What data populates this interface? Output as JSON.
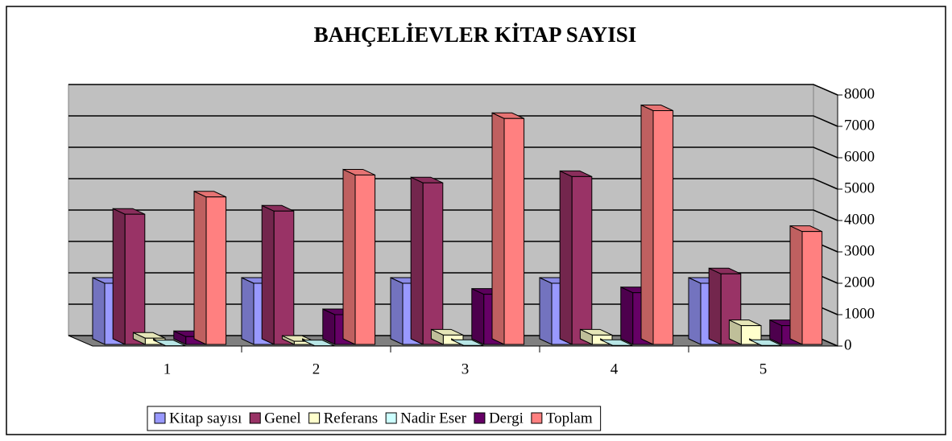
{
  "chart_data": {
    "type": "bar3d",
    "title": "BAHÇELİEVLER KİTAP SAYISI",
    "categories": [
      "1",
      "2",
      "3",
      "4",
      "5"
    ],
    "series": [
      {
        "name": "Kitap sayısı",
        "color": "#9999ff",
        "values": [
          2000,
          2000,
          2000,
          2000,
          2000
        ]
      },
      {
        "name": "Genel",
        "color": "#993366",
        "values": [
          4200,
          4300,
          5200,
          5400,
          2300
        ]
      },
      {
        "name": "Referans",
        "color": "#ffffcc",
        "values": [
          250,
          150,
          350,
          350,
          650
        ]
      },
      {
        "name": "Nadir Eser",
        "color": "#ccffff",
        "values": [
          10,
          10,
          20,
          20,
          20
        ]
      },
      {
        "name": "Dergi",
        "color": "#660066",
        "values": [
          300,
          1000,
          1650,
          1700,
          650
        ]
      },
      {
        "name": "Toplam",
        "color": "#ff8080",
        "values": [
          4750,
          5450,
          7250,
          7500,
          3650
        ]
      }
    ],
    "ylim": [
      0,
      8000
    ],
    "yticks": [
      0,
      1000,
      2000,
      3000,
      4000,
      5000,
      6000,
      7000,
      8000
    ],
    "grid": true,
    "legend": "bottom"
  }
}
